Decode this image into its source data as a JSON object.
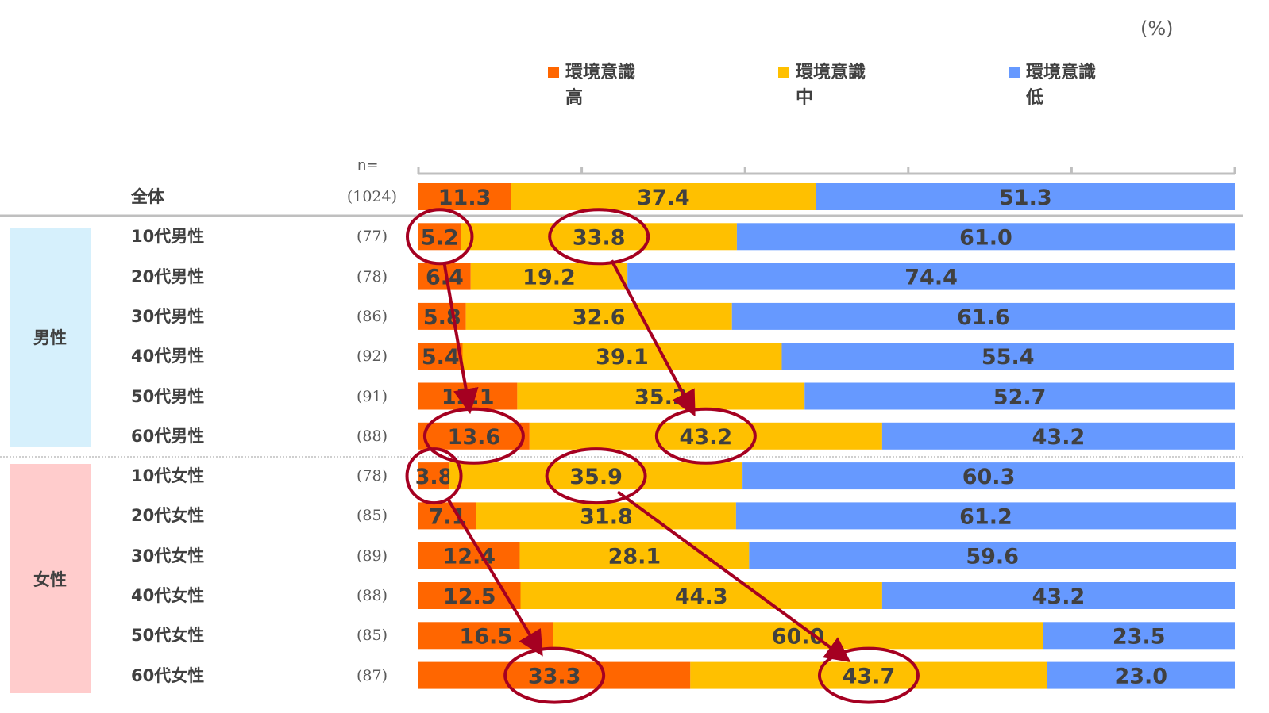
{
  "unit_label": "(%)",
  "n_label": "n=",
  "legend": [
    {
      "label_line1": "環境意識",
      "label_line2": "高",
      "color": "#FF6600"
    },
    {
      "label_line1": "環境意識",
      "label_line2": "中",
      "color": "#FFC000"
    },
    {
      "label_line1": "環境意識",
      "label_line2": "低",
      "color": "#6699FF"
    }
  ],
  "groups": {
    "male": {
      "label": "男性",
      "color": "#D6F0FC"
    },
    "female": {
      "label": "女性",
      "color": "#FFCCCC"
    }
  },
  "rows": [
    {
      "label": "全体",
      "n": "(1024)"
    },
    {
      "label": "10代男性",
      "n": "(77)"
    },
    {
      "label": "20代男性",
      "n": "(78)"
    },
    {
      "label": "30代男性",
      "n": "(86)"
    },
    {
      "label": "40代男性",
      "n": "(92)"
    },
    {
      "label": "50代男性",
      "n": "(91)"
    },
    {
      "label": "60代男性",
      "n": "(88)"
    },
    {
      "label": "10代女性",
      "n": "(78)"
    },
    {
      "label": "20代女性",
      "n": "(85)"
    },
    {
      "label": "30代女性",
      "n": "(89)"
    },
    {
      "label": "40代女性",
      "n": "(88)"
    },
    {
      "label": "50代女性",
      "n": "(85)"
    },
    {
      "label": "60代女性",
      "n": "(87)"
    }
  ],
  "chart_data": {
    "type": "bar",
    "orientation": "horizontal",
    "stacked": true,
    "xlim": [
      0,
      100
    ],
    "unit": "%",
    "categories": [
      "全体",
      "10代男性",
      "20代男性",
      "30代男性",
      "40代男性",
      "50代男性",
      "60代男性",
      "10代女性",
      "20代女性",
      "30代女性",
      "40代女性",
      "50代女性",
      "60代女性"
    ],
    "series": [
      {
        "name": "環境意識 高",
        "color": "#FF6600",
        "values": [
          11.3,
          5.2,
          6.4,
          5.8,
          5.4,
          12.1,
          13.6,
          3.8,
          7.1,
          12.4,
          12.5,
          16.5,
          33.3
        ]
      },
      {
        "name": "環境意識 中",
        "color": "#FFC000",
        "values": [
          37.4,
          33.8,
          19.2,
          32.6,
          39.1,
          35.2,
          43.2,
          35.9,
          31.8,
          28.1,
          44.3,
          60.0,
          43.7
        ]
      },
      {
        "name": "環境意識 低",
        "color": "#6699FF",
        "values": [
          51.3,
          61.0,
          74.4,
          61.6,
          55.4,
          52.7,
          43.2,
          60.3,
          61.2,
          59.6,
          43.2,
          23.5,
          23.0
        ]
      }
    ],
    "highlights": [
      {
        "row": 1,
        "series": 0
      },
      {
        "row": 1,
        "series": 1
      },
      {
        "row": 6,
        "series": 0
      },
      {
        "row": 6,
        "series": 1
      },
      {
        "row": 7,
        "series": 0
      },
      {
        "row": 7,
        "series": 1
      },
      {
        "row": 12,
        "series": 0
      },
      {
        "row": 12,
        "series": 1
      }
    ],
    "arrows": [
      {
        "from_row": 1,
        "from_series": 0,
        "to_row": 6,
        "to_series": 0
      },
      {
        "from_row": 1,
        "from_series": 1,
        "to_row": 6,
        "to_series": 1
      },
      {
        "from_row": 7,
        "from_series": 0,
        "to_row": 12,
        "to_series": 0
      },
      {
        "from_row": 7,
        "from_series": 1,
        "to_row": 12,
        "to_series": 1
      }
    ],
    "highlight_color": "#A50021"
  }
}
